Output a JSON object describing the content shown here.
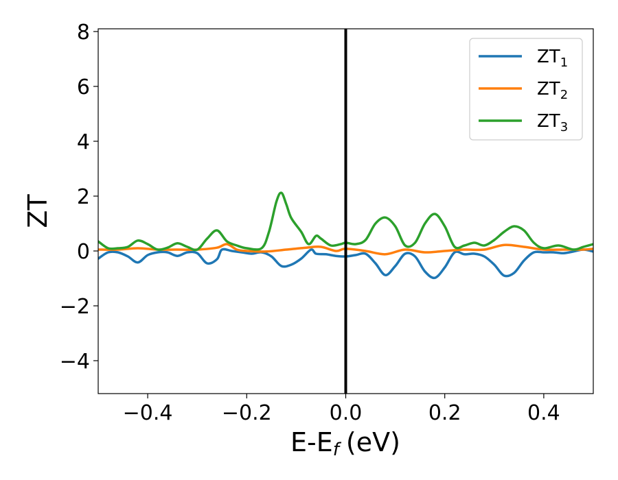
{
  "chart_data": {
    "type": "line",
    "xlabel": "E-E",
    "xlabel_sub": "f",
    "xlabel_unit": "(eV)",
    "ylabel": "ZT",
    "xlim": [
      -0.5,
      0.5
    ],
    "ylim": [
      -5.2,
      8.1
    ],
    "x_ticks": [
      -0.4,
      -0.2,
      0.0,
      0.2,
      0.4
    ],
    "x_tick_labels": [
      "−0.4",
      "−0.2",
      "0.0",
      "0.2",
      "0.4"
    ],
    "y_ticks": [
      -4,
      -2,
      0,
      2,
      4,
      6,
      8
    ],
    "y_tick_labels": [
      "−4",
      "−2",
      "0",
      "2",
      "4",
      "6",
      "8"
    ],
    "grid": false,
    "legend_position": "top-right",
    "vline_x": 0.0,
    "series": [
      {
        "name": "ZT",
        "sub": "1",
        "color": "#1f77b4",
        "points": [
          [
            -0.5,
            -0.28
          ],
          [
            -0.48,
            -0.05
          ],
          [
            -0.46,
            -0.05
          ],
          [
            -0.44,
            -0.2
          ],
          [
            -0.42,
            -0.42
          ],
          [
            -0.4,
            -0.15
          ],
          [
            -0.38,
            -0.05
          ],
          [
            -0.36,
            -0.05
          ],
          [
            -0.34,
            -0.18
          ],
          [
            -0.32,
            -0.05
          ],
          [
            -0.3,
            -0.08
          ],
          [
            -0.28,
            -0.45
          ],
          [
            -0.26,
            -0.3
          ],
          [
            -0.25,
            0.05
          ],
          [
            -0.23,
            0.0
          ],
          [
            -0.21,
            -0.05
          ],
          [
            -0.19,
            -0.1
          ],
          [
            -0.17,
            -0.05
          ],
          [
            -0.15,
            -0.2
          ],
          [
            -0.13,
            -0.55
          ],
          [
            -0.11,
            -0.5
          ],
          [
            -0.09,
            -0.28
          ],
          [
            -0.07,
            0.05
          ],
          [
            -0.06,
            -0.1
          ],
          [
            -0.04,
            -0.12
          ],
          [
            -0.02,
            -0.18
          ],
          [
            0.0,
            -0.2
          ],
          [
            0.02,
            -0.15
          ],
          [
            0.04,
            -0.1
          ],
          [
            0.06,
            -0.45
          ],
          [
            0.08,
            -0.88
          ],
          [
            0.1,
            -0.55
          ],
          [
            0.12,
            -0.1
          ],
          [
            0.14,
            -0.2
          ],
          [
            0.16,
            -0.75
          ],
          [
            0.18,
            -0.98
          ],
          [
            0.2,
            -0.6
          ],
          [
            0.22,
            -0.05
          ],
          [
            0.24,
            -0.12
          ],
          [
            0.26,
            -0.1
          ],
          [
            0.28,
            -0.2
          ],
          [
            0.3,
            -0.5
          ],
          [
            0.32,
            -0.9
          ],
          [
            0.34,
            -0.8
          ],
          [
            0.36,
            -0.35
          ],
          [
            0.38,
            -0.05
          ],
          [
            0.4,
            -0.05
          ],
          [
            0.42,
            -0.05
          ],
          [
            0.44,
            -0.08
          ],
          [
            0.46,
            -0.02
          ],
          [
            0.48,
            0.05
          ],
          [
            0.5,
            -0.02
          ]
        ]
      },
      {
        "name": "ZT",
        "sub": "2",
        "color": "#ff7f0e",
        "points": [
          [
            -0.5,
            0.05
          ],
          [
            -0.46,
            0.05
          ],
          [
            -0.42,
            0.1
          ],
          [
            -0.38,
            0.05
          ],
          [
            -0.34,
            0.05
          ],
          [
            -0.3,
            0.05
          ],
          [
            -0.26,
            0.12
          ],
          [
            -0.24,
            0.25
          ],
          [
            -0.22,
            0.05
          ],
          [
            -0.2,
            0.0
          ],
          [
            -0.16,
            -0.02
          ],
          [
            -0.12,
            0.05
          ],
          [
            -0.08,
            0.12
          ],
          [
            -0.05,
            0.15
          ],
          [
            -0.02,
            0.0
          ],
          [
            0.0,
            0.08
          ],
          [
            0.04,
            0.0
          ],
          [
            0.08,
            -0.12
          ],
          [
            0.12,
            0.05
          ],
          [
            0.16,
            -0.05
          ],
          [
            0.2,
            0.0
          ],
          [
            0.24,
            0.05
          ],
          [
            0.28,
            0.05
          ],
          [
            0.32,
            0.22
          ],
          [
            0.36,
            0.15
          ],
          [
            0.4,
            0.05
          ],
          [
            0.44,
            0.05
          ],
          [
            0.48,
            0.05
          ],
          [
            0.5,
            0.08
          ]
        ]
      },
      {
        "name": "ZT",
        "sub": "3",
        "color": "#2ca02c",
        "points": [
          [
            -0.5,
            0.35
          ],
          [
            -0.48,
            0.1
          ],
          [
            -0.46,
            0.1
          ],
          [
            -0.44,
            0.15
          ],
          [
            -0.42,
            0.38
          ],
          [
            -0.4,
            0.25
          ],
          [
            -0.38,
            0.05
          ],
          [
            -0.36,
            0.12
          ],
          [
            -0.34,
            0.28
          ],
          [
            -0.32,
            0.15
          ],
          [
            -0.3,
            0.05
          ],
          [
            -0.28,
            0.45
          ],
          [
            -0.26,
            0.75
          ],
          [
            -0.24,
            0.35
          ],
          [
            -0.22,
            0.2
          ],
          [
            -0.2,
            0.1
          ],
          [
            -0.17,
            0.1
          ],
          [
            -0.155,
            0.7
          ],
          [
            -0.14,
            1.8
          ],
          [
            -0.13,
            2.12
          ],
          [
            -0.12,
            1.7
          ],
          [
            -0.11,
            1.2
          ],
          [
            -0.09,
            0.7
          ],
          [
            -0.075,
            0.25
          ],
          [
            -0.06,
            0.55
          ],
          [
            -0.05,
            0.45
          ],
          [
            -0.03,
            0.2
          ],
          [
            -0.01,
            0.25
          ],
          [
            0.0,
            0.3
          ],
          [
            0.02,
            0.25
          ],
          [
            0.04,
            0.4
          ],
          [
            0.06,
            1.0
          ],
          [
            0.08,
            1.22
          ],
          [
            0.1,
            0.9
          ],
          [
            0.12,
            0.2
          ],
          [
            0.14,
            0.3
          ],
          [
            0.16,
            1.0
          ],
          [
            0.18,
            1.35
          ],
          [
            0.2,
            0.9
          ],
          [
            0.22,
            0.15
          ],
          [
            0.24,
            0.2
          ],
          [
            0.26,
            0.3
          ],
          [
            0.28,
            0.2
          ],
          [
            0.3,
            0.4
          ],
          [
            0.32,
            0.7
          ],
          [
            0.34,
            0.9
          ],
          [
            0.36,
            0.75
          ],
          [
            0.38,
            0.3
          ],
          [
            0.4,
            0.1
          ],
          [
            0.43,
            0.2
          ],
          [
            0.46,
            0.05
          ],
          [
            0.48,
            0.15
          ],
          [
            0.5,
            0.25
          ]
        ]
      }
    ]
  }
}
